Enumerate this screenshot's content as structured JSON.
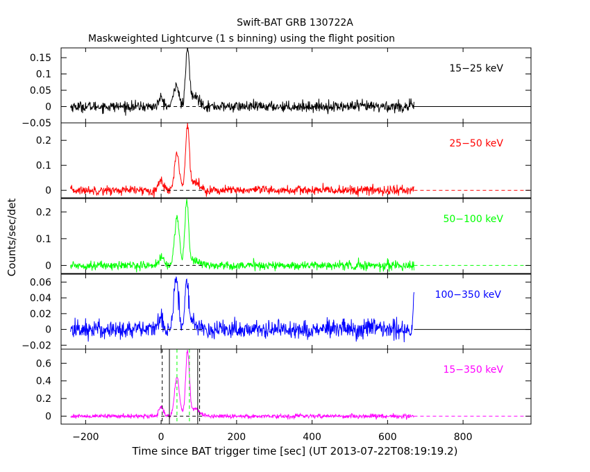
{
  "header": {
    "title": "Swift-BAT GRB 130722A",
    "subtitle": "Maskweighted Lightcurve (1 s binning) using the flight position"
  },
  "axes": {
    "xlabel": "Time since BAT trigger time [sec] (UT 2013-07-22T08:19:19.2)",
    "ylabel": "Counts/sec/det"
  },
  "chart_data": {
    "type": "line",
    "title": "Swift-BAT GRB 130722A",
    "subtitle": "Maskweighted Lightcurve (1 s binning) using the flight position",
    "xlabel": "Time since BAT trigger time [sec] (UT 2013-07-22T08:19:19.2)",
    "ylabel": "Counts/sec/det",
    "xlim": [
      -265,
      980
    ],
    "x_ticks": [
      -200,
      0,
      200,
      400,
      600,
      800
    ],
    "x_tick_labels": [
      "−200",
      "0",
      "200",
      "400",
      "600",
      "800"
    ],
    "data_end_time": 670,
    "grid": false,
    "panels": [
      {
        "name": "15−25 keV",
        "color": "#000000",
        "ylim": [
          -0.05,
          0.18
        ],
        "y_ticks": [
          -0.05,
          0,
          0.05,
          0.1,
          0.15
        ],
        "y_tick_labels": [
          "−0.05",
          "0",
          "0.05",
          "0.1",
          "0.15"
        ],
        "noise": 0.008,
        "features": [
          {
            "t": 0,
            "value": 0.025
          },
          {
            "t": 40,
            "value": 0.07
          },
          {
            "t": 70,
            "value": 0.17
          },
          {
            "t": 90,
            "value": 0.03
          }
        ]
      },
      {
        "name": "25−50 keV",
        "color": "#ff0000",
        "ylim": [
          -0.03,
          0.27
        ],
        "y_ticks": [
          0,
          0.1,
          0.2
        ],
        "y_tick_labels": [
          "0",
          "0.1",
          "0.2"
        ],
        "noise": 0.009,
        "features": [
          {
            "t": 0,
            "value": 0.04
          },
          {
            "t": 42,
            "value": 0.15
          },
          {
            "t": 70,
            "value": 0.26
          },
          {
            "t": 90,
            "value": 0.03
          }
        ]
      },
      {
        "name": "50−100 keV",
        "color": "#00ff00",
        "ylim": [
          -0.03,
          0.25
        ],
        "y_ticks": [
          0,
          0.1,
          0.2
        ],
        "y_tick_labels": [
          "0",
          "0.1",
          "0.2"
        ],
        "noise": 0.008,
        "features": [
          {
            "t": 0,
            "value": 0.03
          },
          {
            "t": 42,
            "value": 0.18
          },
          {
            "t": 68,
            "value": 0.24
          },
          {
            "t": 90,
            "value": 0.02
          }
        ]
      },
      {
        "name": "100−350 keV",
        "color": "#0000ff",
        "ylim": [
          -0.025,
          0.07
        ],
        "y_ticks": [
          -0.02,
          0,
          0.02,
          0.04,
          0.06
        ],
        "y_tick_labels": [
          "−0.02",
          "0",
          "0.02",
          "0.04",
          "0.06"
        ],
        "noise": 0.006,
        "features": [
          {
            "t": 0,
            "value": 0.015
          },
          {
            "t": 40,
            "value": 0.065
          },
          {
            "t": 68,
            "value": 0.06
          },
          {
            "t": 90,
            "value": 0.008
          },
          {
            "t": 670,
            "value": 0.05
          }
        ]
      },
      {
        "name": "15−350 keV",
        "color": "#ff00ff",
        "ylim": [
          -0.09,
          0.76
        ],
        "y_ticks": [
          0,
          0.2,
          0.4,
          0.6
        ],
        "y_tick_labels": [
          "0",
          "0.2",
          "0.4",
          "0.6"
        ],
        "noise": 0.012,
        "features": [
          {
            "t": 0,
            "value": 0.1
          },
          {
            "t": 42,
            "value": 0.44
          },
          {
            "t": 70,
            "value": 0.72
          },
          {
            "t": 90,
            "value": 0.08
          }
        ],
        "marker_lines": [
          {
            "t": 3,
            "color": "#000000",
            "style": "dashed"
          },
          {
            "t": 22,
            "color": "#000000",
            "style": "solid"
          },
          {
            "t": 42,
            "color": "#00ff00",
            "style": "dashed"
          },
          {
            "t": 75,
            "color": "#00ff00",
            "style": "dashed"
          },
          {
            "t": 97,
            "color": "#000000",
            "style": "solid"
          },
          {
            "t": 102,
            "color": "#000000",
            "style": "dashed"
          }
        ]
      }
    ]
  }
}
